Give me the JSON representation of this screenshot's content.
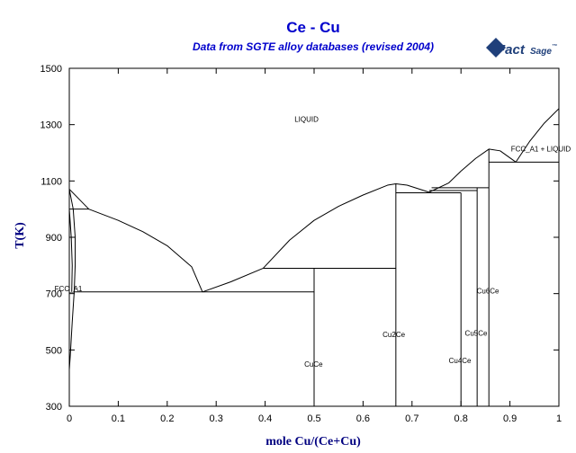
{
  "chart_data": {
    "type": "line",
    "title": "Ce - Cu",
    "subtitle": "Data from SGTE alloy databases (revised 2004)",
    "xlabel": "mole Cu/(Ce+Cu)",
    "ylabel": "T(K)",
    "xlim": [
      0,
      1
    ],
    "ylim": [
      300,
      1500
    ],
    "xticks": [
      0,
      0.1,
      0.2,
      0.3,
      0.4,
      0.5,
      0.6,
      0.7,
      0.8,
      0.9,
      1
    ],
    "xtick_labels": [
      "0",
      "0.1",
      "0.2",
      "0.3",
      "0.4",
      "0.5",
      "0.6",
      "0.7",
      "0.8",
      "0.9",
      "1"
    ],
    "yticks": [
      300,
      500,
      700,
      900,
      1100,
      1300,
      1500
    ],
    "ytick_labels": [
      "300",
      "500",
      "700",
      "900",
      "1100",
      "1300",
      "1500"
    ],
    "grid": false,
    "line_color": "#000000",
    "series": [
      {
        "id": "liquidus-ce-side",
        "points": [
          [
            0,
            1071
          ],
          [
            0.04,
            1000
          ],
          [
            0.1,
            960
          ],
          [
            0.15,
            920
          ],
          [
            0.2,
            870
          ],
          [
            0.25,
            795
          ],
          [
            0.272,
            706
          ]
        ]
      },
      {
        "id": "liquidus-cuce",
        "points": [
          [
            0.272,
            706
          ],
          [
            0.33,
            742
          ],
          [
            0.396,
            790
          ]
        ]
      },
      {
        "id": "liquidus-cu2ce",
        "points": [
          [
            0.396,
            790
          ],
          [
            0.45,
            890
          ],
          [
            0.5,
            960
          ],
          [
            0.55,
            1010
          ],
          [
            0.6,
            1050
          ],
          [
            0.65,
            1085
          ],
          [
            0.667,
            1090
          ],
          [
            0.69,
            1085
          ],
          [
            0.735,
            1060
          ]
        ]
      },
      {
        "id": "liquidus-cu4ce",
        "points": [
          [
            0.735,
            1060
          ],
          [
            0.775,
            1093
          ],
          [
            0.8,
            1135
          ]
        ]
      },
      {
        "id": "liquidus-cu6ce",
        "points": [
          [
            0.8,
            1135
          ],
          [
            0.83,
            1180
          ],
          [
            0.857,
            1213
          ],
          [
            0.88,
            1207
          ],
          [
            0.912,
            1167
          ]
        ]
      },
      {
        "id": "liquidus-cu-side",
        "points": [
          [
            0.912,
            1167
          ],
          [
            0.94,
            1240
          ],
          [
            0.97,
            1305
          ],
          [
            1,
            1357
          ]
        ]
      },
      {
        "id": "fcc-solvus-a",
        "points": [
          [
            0,
            1071
          ],
          [
            0.008,
            1000
          ],
          [
            0.012,
            900
          ],
          [
            0.012,
            800
          ],
          [
            0.01,
            706
          ],
          [
            0.006,
            600
          ],
          [
            0.002,
            480
          ],
          [
            0,
            430
          ]
        ]
      },
      {
        "id": "fcc-solvus-b",
        "points": [
          [
            0,
            1000
          ],
          [
            0.004,
            900
          ],
          [
            0.006,
            800
          ],
          [
            0.005,
            706
          ]
        ]
      },
      {
        "id": "tie-line-1000",
        "points": [
          [
            0,
            1000
          ],
          [
            0.04,
            1000
          ]
        ]
      },
      {
        "id": "eutectic-706",
        "points": [
          [
            0.008,
            706
          ],
          [
            0.5,
            706
          ]
        ]
      },
      {
        "id": "tie-line-790",
        "points": [
          [
            0.396,
            790
          ],
          [
            0.667,
            790
          ]
        ]
      },
      {
        "id": "tie-line-1058",
        "points": [
          [
            0.667,
            1058
          ],
          [
            0.8,
            1058
          ]
        ]
      },
      {
        "id": "tie-line-1066",
        "points": [
          [
            0.735,
            1066
          ],
          [
            0.833,
            1066
          ]
        ]
      },
      {
        "id": "tie-line-1076",
        "points": [
          [
            0.74,
            1076
          ],
          [
            0.857,
            1076
          ]
        ]
      },
      {
        "id": "tie-line-1167",
        "points": [
          [
            0.857,
            1167
          ],
          [
            1,
            1167
          ]
        ]
      },
      {
        "id": "line-cuce",
        "points": [
          [
            0.5,
            300
          ],
          [
            0.5,
            790
          ]
        ]
      },
      {
        "id": "line-cu2ce",
        "points": [
          [
            0.667,
            300
          ],
          [
            0.667,
            1090
          ]
        ]
      },
      {
        "id": "line-cu4ce",
        "points": [
          [
            0.8,
            300
          ],
          [
            0.8,
            1058
          ]
        ]
      },
      {
        "id": "line-cu5ce",
        "points": [
          [
            0.833,
            300
          ],
          [
            0.833,
            1076
          ]
        ]
      },
      {
        "id": "line-cu6ce",
        "points": [
          [
            0.857,
            300
          ],
          [
            0.857,
            1213
          ]
        ]
      }
    ],
    "annotations": [
      {
        "text": "LIQUID",
        "x": 0.46,
        "y": 1310
      },
      {
        "text": "FCC_A1 + LIQUID",
        "x": 0.902,
        "y": 1204
      },
      {
        "text": "FCC_A1",
        "x": -0.03,
        "y": 708
      },
      {
        "text": "CuCe",
        "x": 0.48,
        "y": 440
      },
      {
        "text": "Cu2Ce",
        "x": 0.64,
        "y": 545
      },
      {
        "text": "Cu4Ce",
        "x": 0.775,
        "y": 453
      },
      {
        "text": "Cu5Ce",
        "x": 0.808,
        "y": 550
      },
      {
        "text": "Cu6Ce",
        "x": 0.832,
        "y": 700
      }
    ]
  },
  "logo": {
    "text_main": "Fact",
    "text_sub": "Sage",
    "trademark": "™",
    "color": "#1f3f7a"
  }
}
